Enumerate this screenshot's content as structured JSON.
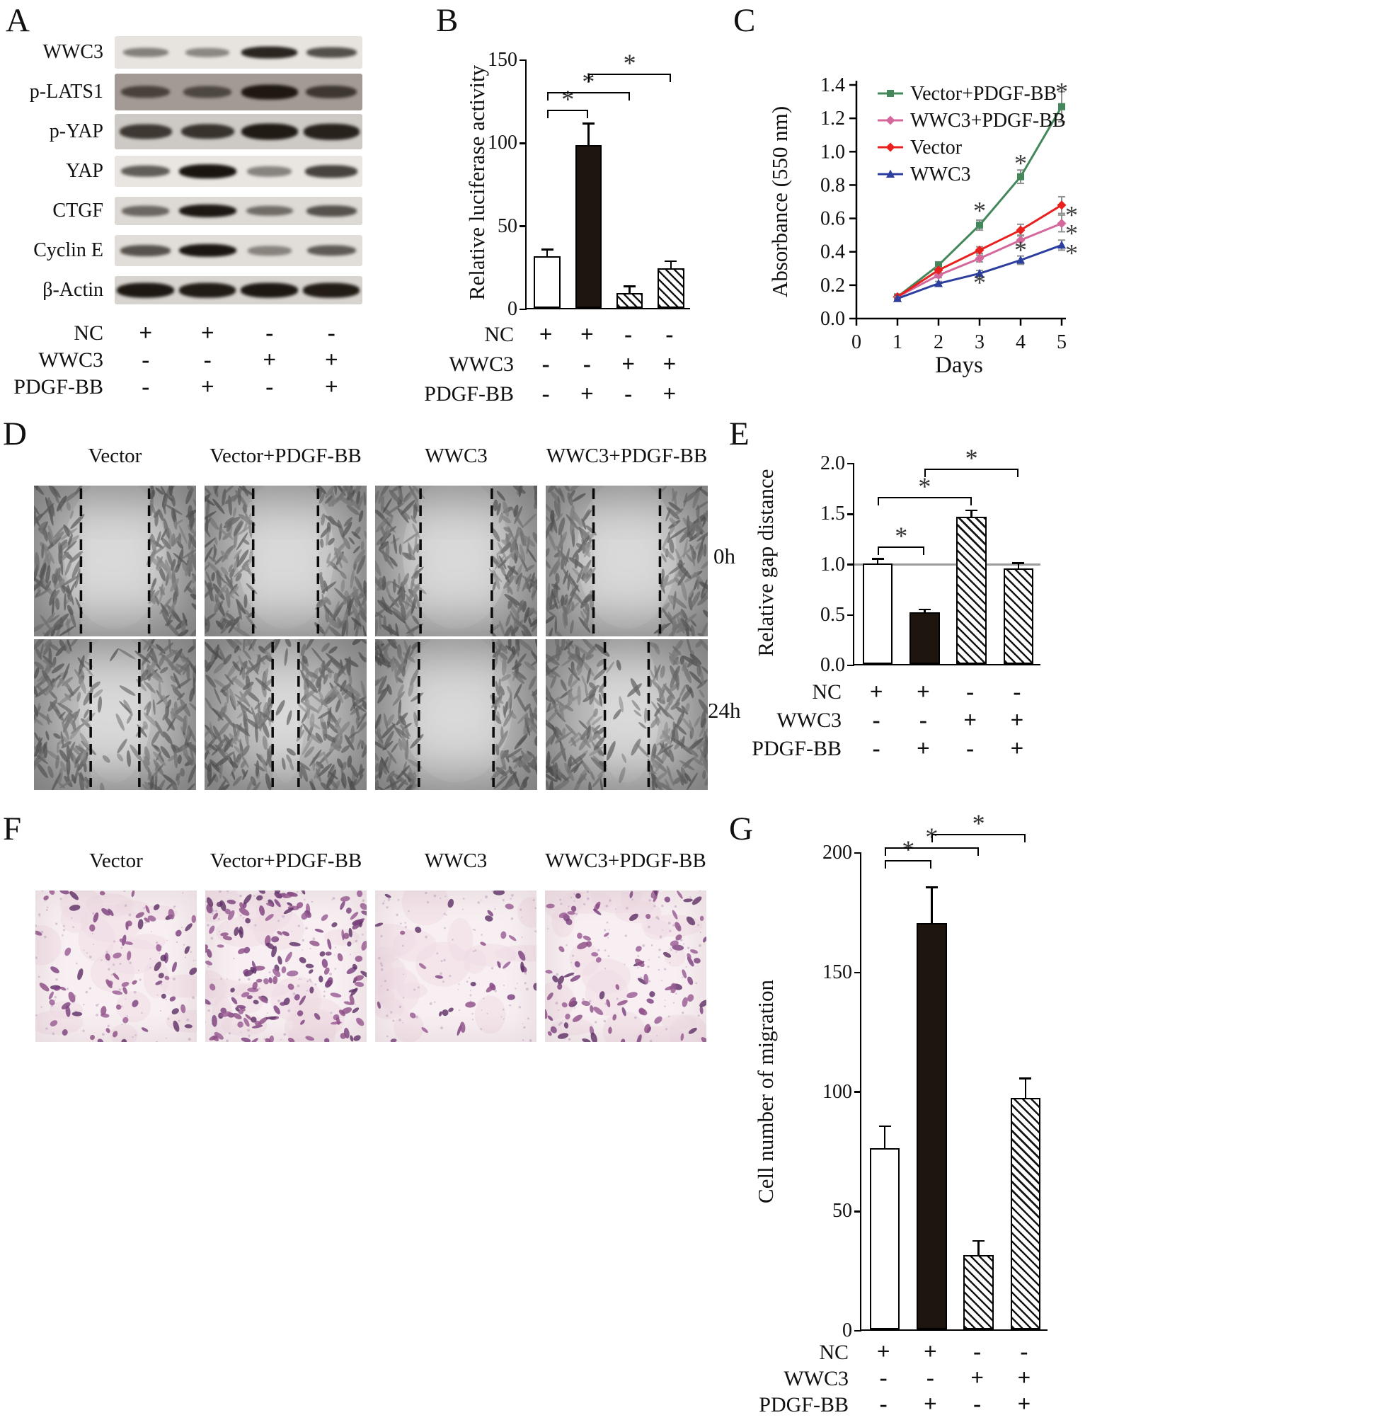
{
  "figure": {
    "labels": {
      "A": "A",
      "B": "B",
      "C": "C",
      "D": "D",
      "E": "E",
      "F": "F",
      "G": "G"
    }
  },
  "panelA": {
    "blots": [
      {
        "label": "WWC3",
        "bg": "#e7e4e0",
        "strip_h": 46,
        "band_h": 14,
        "bands": [
          0.35,
          0.3,
          0.88,
          0.62
        ]
      },
      {
        "label": "p-LATS1",
        "bg": "#a39a95",
        "strip_h": 52,
        "band_h": 17,
        "bands": [
          0.55,
          0.5,
          0.93,
          0.65
        ]
      },
      {
        "label": "p-YAP",
        "bg": "#cdc9c4",
        "strip_h": 50,
        "band_h": 19,
        "bands": [
          0.72,
          0.76,
          0.93,
          0.88
        ]
      },
      {
        "label": "YAP",
        "bg": "#e9e6e2",
        "strip_h": 44,
        "band_h": 16,
        "bands": [
          0.55,
          0.97,
          0.33,
          0.7
        ]
      },
      {
        "label": "CTGF",
        "bg": "#ddd9d4",
        "strip_h": 40,
        "band_h": 15,
        "bands": [
          0.46,
          0.95,
          0.42,
          0.6
        ]
      },
      {
        "label": "Cyclin E",
        "bg": "#e1ddd8",
        "strip_h": 44,
        "band_h": 15,
        "bands": [
          0.6,
          0.96,
          0.3,
          0.55
        ]
      },
      {
        "label": "β-Actin",
        "bg": "#d7d3ce",
        "strip_h": 40,
        "band_h": 17,
        "bands": [
          0.95,
          0.93,
          0.95,
          0.93
        ]
      }
    ],
    "conditions": [
      {
        "label": "NC",
        "values": [
          "+",
          "+",
          "-",
          "-"
        ]
      },
      {
        "label": "WWC3",
        "values": [
          "-",
          "-",
          "+",
          "+"
        ]
      },
      {
        "label": "PDGF-BB",
        "values": [
          "-",
          "+",
          "-",
          "+"
        ]
      }
    ]
  },
  "panelD": {
    "col_titles": [
      "Vector",
      "Vector+PDGF-BB",
      "WWC3",
      "WWC3+PDGF-BB"
    ],
    "row_labels": [
      "0h",
      "24h"
    ],
    "gap_fractions_0h": [
      0.42,
      0.4,
      0.44,
      0.41
    ],
    "gap_fractions_24h": [
      0.3,
      0.16,
      0.46,
      0.27
    ]
  },
  "panelF": {
    "col_titles": [
      "Vector",
      "Vector+PDGF-BB",
      "WWC3",
      "WWC3+PDGF-BB"
    ],
    "cell_counts": [
      80,
      175,
      34,
      100
    ]
  },
  "chart_data": [
    {
      "id": "B",
      "type": "bar",
      "ylabel": "Relative luciferase activity",
      "ylim": [
        0,
        150
      ],
      "yticks": [
        "0",
        "50",
        "100",
        "150"
      ],
      "categories": [
        "NC",
        "NC+PDGF-BB",
        "WWC3",
        "WWC3+PDGF-BB"
      ],
      "values": [
        31,
        98,
        9,
        24
      ],
      "errors": [
        4,
        13,
        4,
        4
      ],
      "bar_styles": [
        "open",
        "solid",
        "hatch",
        "hatch"
      ],
      "brackets": [
        {
          "from": 0,
          "to": 1,
          "y": 120,
          "label": "*"
        },
        {
          "from": 0,
          "to": 2,
          "y": 131,
          "label": "*"
        },
        {
          "from": 1,
          "to": 3,
          "y": 142,
          "label": "*"
        }
      ],
      "conditions": [
        {
          "label": "NC",
          "values": [
            "+",
            "+",
            "-",
            "-"
          ]
        },
        {
          "label": "WWC3",
          "values": [
            "-",
            "-",
            "+",
            "+"
          ]
        },
        {
          "label": "PDGF-BB",
          "values": [
            "-",
            "+",
            "-",
            "+"
          ]
        }
      ]
    },
    {
      "id": "C",
      "type": "line",
      "xlabel": "Days",
      "ylabel": "Absorbance (550 nm)",
      "xlim": [
        0,
        5
      ],
      "xticks": [
        "0",
        "1",
        "2",
        "3",
        "4",
        "5"
      ],
      "ylim": [
        0,
        1.4
      ],
      "yticks": [
        "0.0",
        "0.2",
        "0.4",
        "0.6",
        "0.8",
        "1.0",
        "1.2",
        "1.4"
      ],
      "x": [
        1,
        2,
        3,
        4,
        5
      ],
      "legend_position": "top-left",
      "series": [
        {
          "name": "Vector+PDGF-BB",
          "color": "#44875a",
          "marker": "square",
          "values": [
            0.13,
            0.32,
            0.56,
            0.85,
            1.27
          ],
          "errors": [
            0.01,
            0.02,
            0.03,
            0.04,
            0.09
          ]
        },
        {
          "name": "WWC3+PDGF-BB",
          "color": "#d4679c",
          "marker": "diamond",
          "values": [
            0.13,
            0.26,
            0.36,
            0.47,
            0.57
          ],
          "errors": [
            0.01,
            0.015,
            0.02,
            0.03,
            0.05
          ]
        },
        {
          "name": "Vector",
          "color": "#e8201e",
          "marker": "diamond",
          "values": [
            0.13,
            0.29,
            0.41,
            0.53,
            0.68
          ],
          "errors": [
            0.01,
            0.015,
            0.02,
            0.035,
            0.05
          ]
        },
        {
          "name": "WWC3",
          "color": "#2c3f9e",
          "marker": "triangle",
          "values": [
            0.12,
            0.21,
            0.27,
            0.35,
            0.44
          ],
          "errors": [
            0.01,
            0.012,
            0.018,
            0.025,
            0.03
          ]
        }
      ],
      "annotations": [
        {
          "x": 3,
          "y": 0.655,
          "label": "*"
        },
        {
          "x": 4,
          "y": 0.94,
          "label": "*"
        },
        {
          "x": 5,
          "y": 1.37,
          "label": "*"
        },
        {
          "x": 3,
          "y": 0.225,
          "label": "*"
        },
        {
          "x": 4,
          "y": 0.42,
          "label": "*"
        },
        {
          "x": 5,
          "y": 0.63,
          "dx": 14,
          "label": "*"
        },
        {
          "x": 5,
          "y": 0.52,
          "dx": 14,
          "label": "*"
        },
        {
          "x": 5,
          "y": 0.4,
          "dx": 14,
          "label": "*"
        }
      ]
    },
    {
      "id": "E",
      "type": "bar",
      "ylabel": "Relative gap distance",
      "ylim": [
        0,
        2
      ],
      "yticks": [
        "0.0",
        "0.5",
        "1.0",
        "1.5",
        "2.0"
      ],
      "categories": [
        "NC",
        "NC+PDGF-BB",
        "WWC3",
        "WWC3+PDGF-BB"
      ],
      "values": [
        1.0,
        0.51,
        1.46,
        0.95
      ],
      "errors": [
        0.04,
        0.03,
        0.06,
        0.05
      ],
      "bar_styles": [
        "open",
        "solid",
        "hatch",
        "hatch"
      ],
      "refline": 1.0,
      "brackets": [
        {
          "from": 0,
          "to": 1,
          "y": 1.18,
          "label": "*"
        },
        {
          "from": 0,
          "to": 2,
          "y": 1.67,
          "label": "*"
        },
        {
          "from": 1,
          "to": 3,
          "y": 1.95,
          "label": "*"
        }
      ],
      "conditions": [
        {
          "label": "NC",
          "values": [
            "+",
            "+",
            "-",
            "-"
          ]
        },
        {
          "label": "WWC3",
          "values": [
            "-",
            "-",
            "+",
            "+"
          ]
        },
        {
          "label": "PDGF-BB",
          "values": [
            "-",
            "+",
            "-",
            "+"
          ]
        }
      ]
    },
    {
      "id": "G",
      "type": "bar",
      "ylabel": "Cell number of migration",
      "ylim": [
        0,
        200
      ],
      "yticks": [
        "0",
        "50",
        "100",
        "150",
        "200"
      ],
      "categories": [
        "NC",
        "NC+PDGF-BB",
        "WWC3",
        "WWC3+PDGF-BB"
      ],
      "values": [
        76,
        170,
        31,
        97
      ],
      "errors": [
        9,
        15,
        6,
        8
      ],
      "bar_styles": [
        "open",
        "solid",
        "hatch",
        "hatch"
      ],
      "brackets": [
        {
          "from": 0,
          "to": 1,
          "y": 197,
          "label": "*"
        },
        {
          "from": 0,
          "to": 2,
          "y": 202.5,
          "label": "*"
        },
        {
          "from": 1,
          "to": 3,
          "y": 208,
          "label": "*"
        }
      ],
      "conditions": [
        {
          "label": "NC",
          "values": [
            "+",
            "+",
            "-",
            "-"
          ]
        },
        {
          "label": "WWC3",
          "values": [
            "-",
            "-",
            "+",
            "+"
          ]
        },
        {
          "label": "PDGF-BB",
          "values": [
            "-",
            "+",
            "-",
            "+"
          ]
        }
      ]
    }
  ]
}
